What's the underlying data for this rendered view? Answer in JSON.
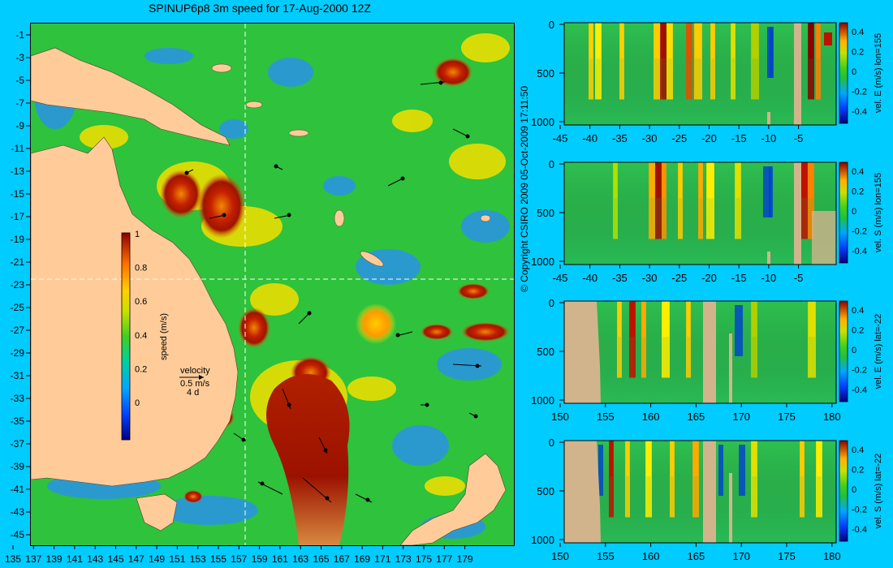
{
  "title": "SPINUP6p8 3m speed for 17-Aug-2000 12Z",
  "map": {
    "lat_ticks": [
      "-1",
      "-3",
      "-5",
      "-7",
      "-9",
      "-11",
      "-13",
      "-15",
      "-17",
      "-19",
      "-21",
      "-23",
      "-25",
      "-27",
      "-29",
      "-31",
      "-33",
      "-35",
      "-37",
      "-39",
      "-41",
      "-43",
      "-45"
    ],
    "lon_ticks": [
      "135",
      "137",
      "139",
      "141",
      "143",
      "145",
      "147",
      "149",
      "151",
      "153",
      "155",
      "157",
      "159",
      "161",
      "163",
      "165",
      "167",
      "169",
      "171",
      "173",
      "175",
      "177",
      "179"
    ],
    "colorbar": {
      "ticks": [
        "1",
        "0.8",
        "0.6",
        "0.4",
        "0.2",
        "0"
      ],
      "label": "speed (m/s)"
    },
    "velocity_legend": {
      "title": "velocity",
      "scale": "0.5 m/s",
      "duration": "4 d"
    }
  },
  "copyright": "© Copyright CSIRO 2009   05-Oct-2009 17:11:50",
  "sections": [
    {
      "xticks": [
        "-45",
        "-40",
        "-35",
        "-30",
        "-25",
        "-20",
        "-15",
        "-10",
        "-5"
      ],
      "yticks": [
        "0",
        "500",
        "1000"
      ],
      "cticks": [
        "0.4",
        "0.2",
        "0",
        "-0.2",
        "-0.4"
      ],
      "clabel": "vel. E (m/s) lon=155"
    },
    {
      "xticks": [
        "-45",
        "-40",
        "-35",
        "-30",
        "-25",
        "-20",
        "-15",
        "-10",
        "-5"
      ],
      "yticks": [
        "0",
        "500",
        "1000"
      ],
      "cticks": [
        "0.4",
        "0.2",
        "0",
        "-0.2",
        "-0.4"
      ],
      "clabel": "vel. S (m/s) lon=155"
    },
    {
      "xticks": [
        "150",
        "155",
        "160",
        "165",
        "170",
        "175",
        "180"
      ],
      "yticks": [
        "0",
        "500",
        "1000"
      ],
      "cticks": [
        "0.4",
        "0.2",
        "0",
        "-0.2",
        "-0.4"
      ],
      "clabel": "vel. E (m/s) lat=-22"
    },
    {
      "xticks": [
        "150",
        "155",
        "160",
        "165",
        "170",
        "175",
        "180"
      ],
      "yticks": [
        "0",
        "500",
        "1000"
      ],
      "cticks": [
        "0.4",
        "0.2",
        "0",
        "-0.2",
        "-0.4"
      ],
      "clabel": "vel. S (m/s) lat=-22"
    }
  ],
  "colors": {
    "background": "#00ccff",
    "land": "#ffcc99",
    "section_land": "#d2b48c",
    "ocean_base": "#22c23a"
  }
}
